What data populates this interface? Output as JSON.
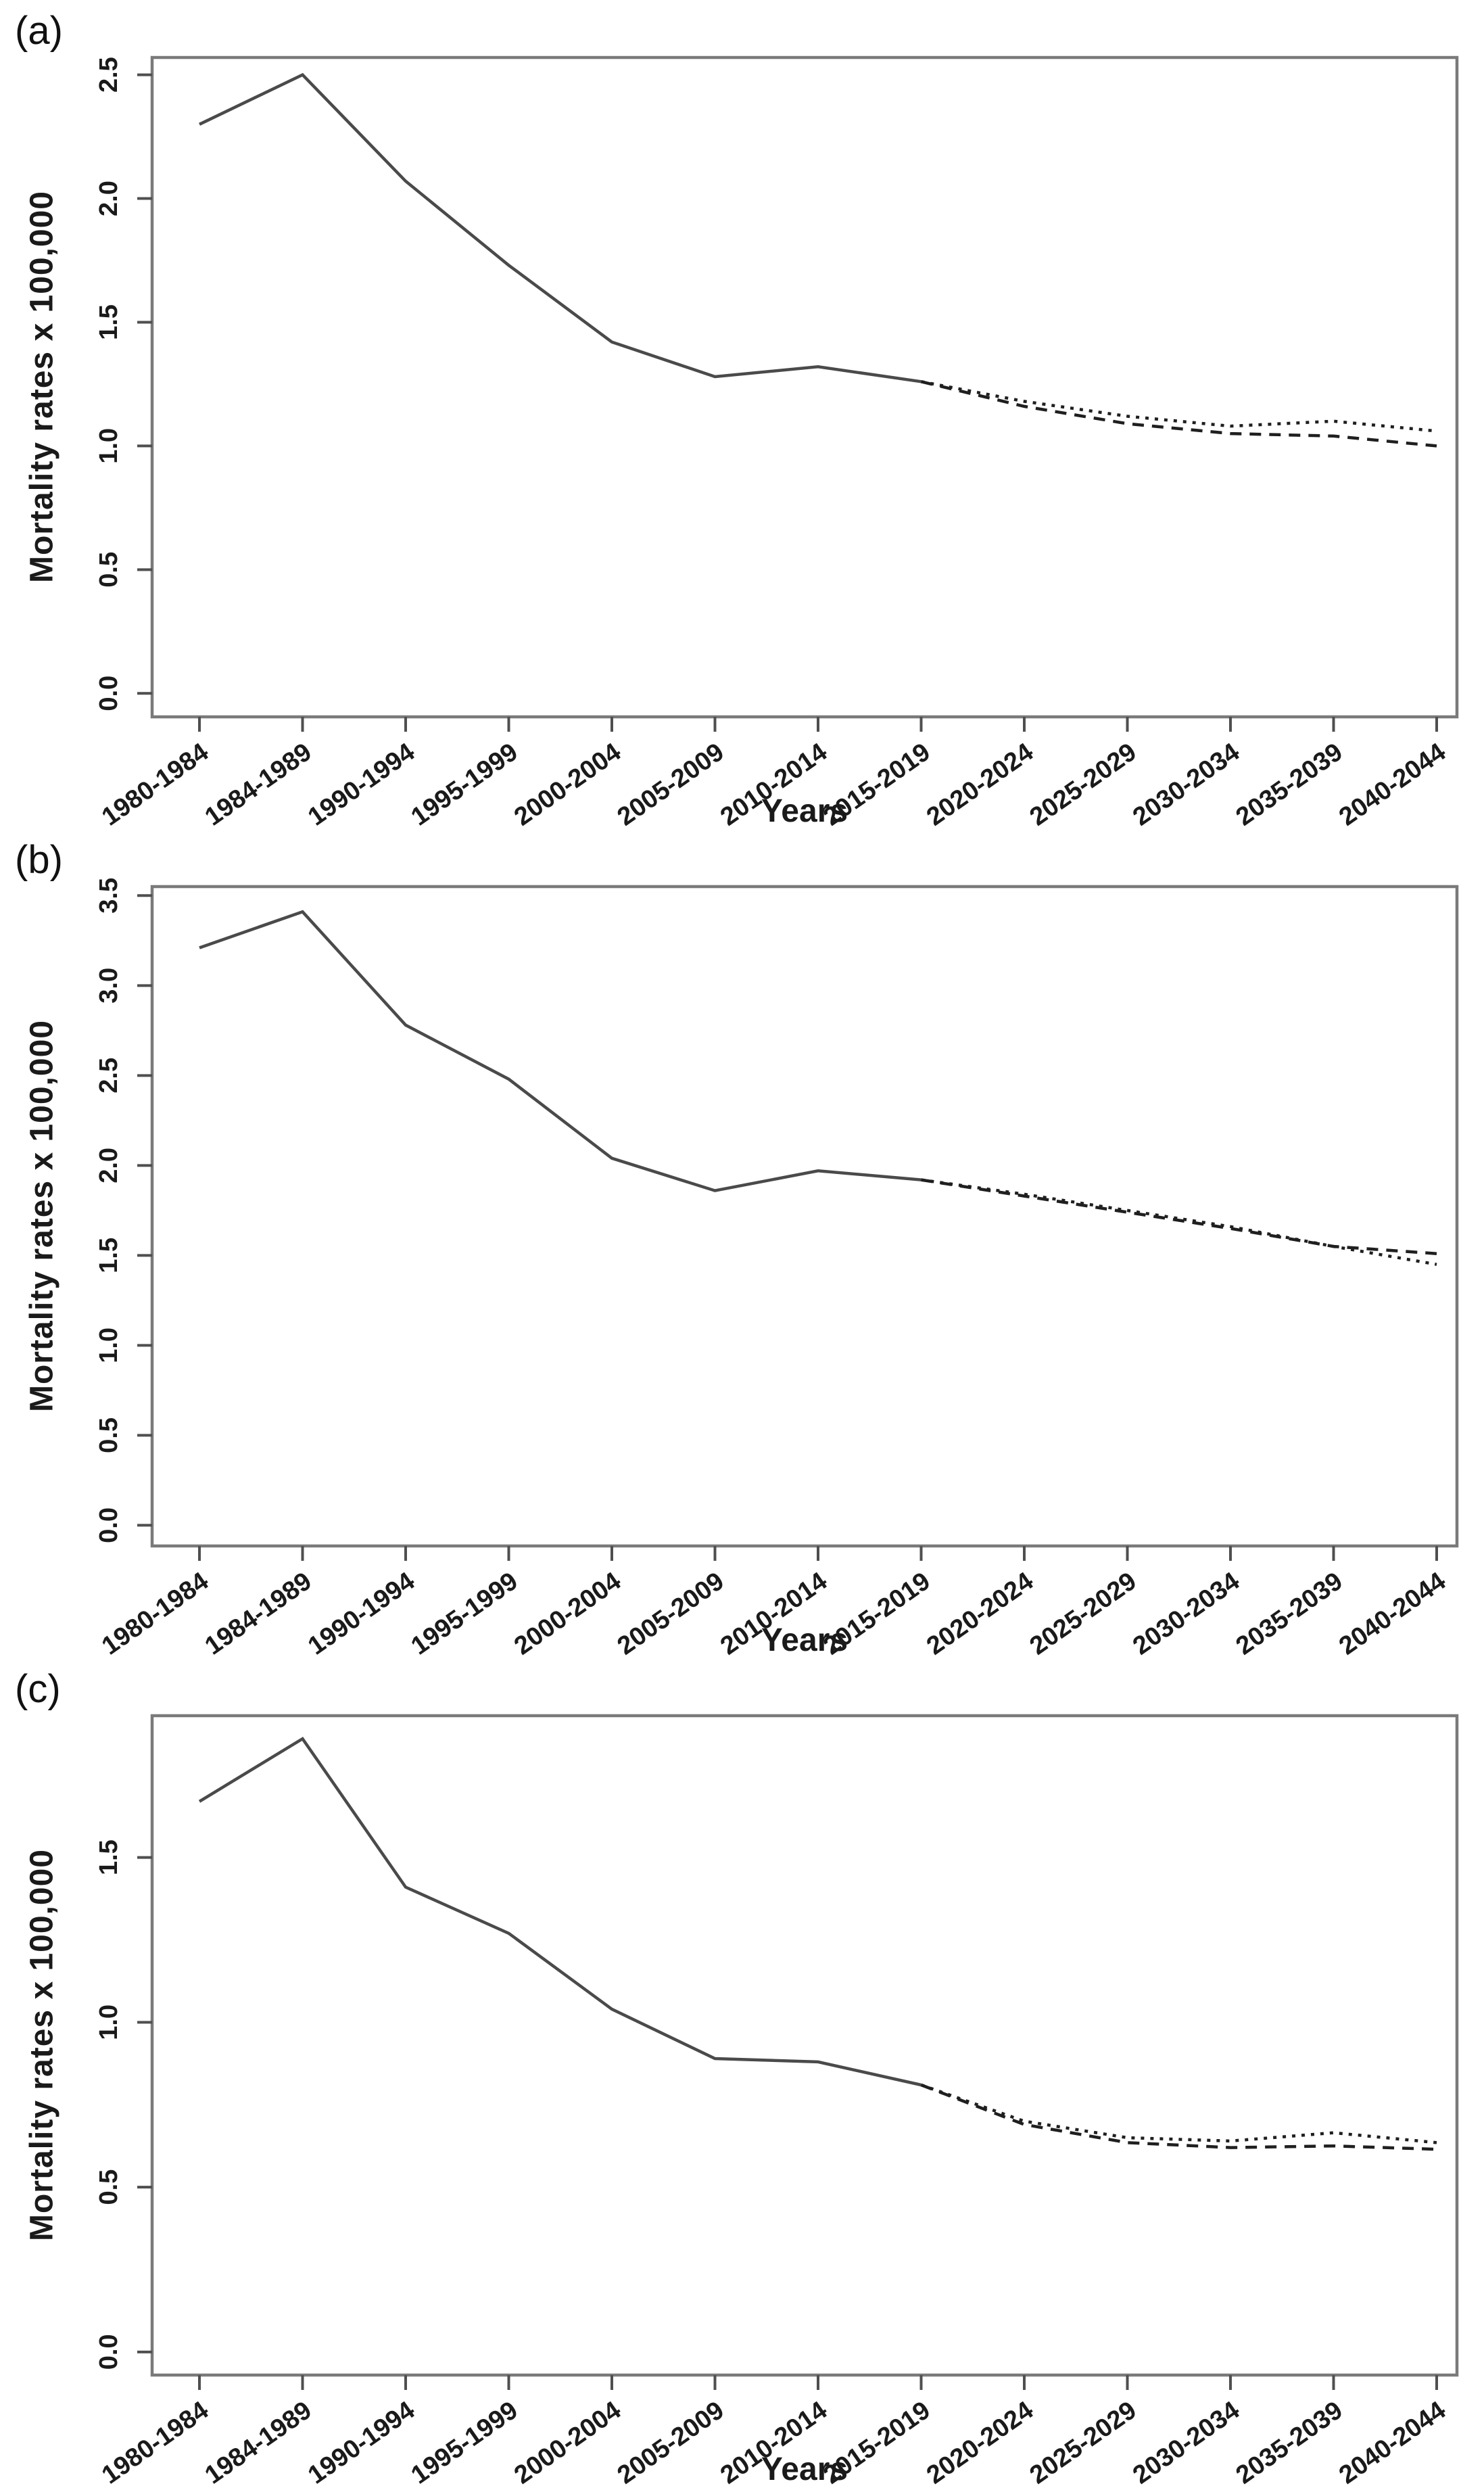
{
  "figure": {
    "background": "#ffffff",
    "text_color": "#1a1a1a",
    "axis_color": "#7a7a7a",
    "tick_color": "#4f4f4f",
    "observed_color": "#4a4a4a",
    "projection_color": "#1f1f1f"
  },
  "chart_data": [
    {
      "type": "line",
      "panel_label": "(a)",
      "xlabel": "Years",
      "ylabel": "Mortality rates x 100,000",
      "legend_position": "none",
      "grid": false,
      "categories": [
        "1980-1984",
        "1984-1989",
        "1990-1994",
        "1995-1999",
        "2000-2004",
        "2005-2009",
        "2010-2014",
        "2015-2019",
        "2020-2024",
        "2025-2029",
        "2030-2034",
        "2035-2039",
        "2040-2044"
      ],
      "ytick_labels": [
        "0.0",
        "0.5",
        "1.0",
        "1.5",
        "2.0",
        "2.5"
      ],
      "ylim": [
        -0.095,
        2.57
      ],
      "series": [
        {
          "name": "observed",
          "style": "solid",
          "start_index": 0,
          "values": [
            2.3,
            2.5,
            2.07,
            1.73,
            1.42,
            1.28,
            1.32,
            1.26
          ]
        },
        {
          "name": "projection-dotted",
          "style": "dotted",
          "start_index": 7,
          "values": [
            1.26,
            1.18,
            1.12,
            1.08,
            1.1,
            1.06
          ]
        },
        {
          "name": "projection-dashed",
          "style": "dashed",
          "start_index": 7,
          "values": [
            1.26,
            1.16,
            1.09,
            1.05,
            1.04,
            1.0
          ]
        }
      ]
    },
    {
      "type": "line",
      "panel_label": "(b)",
      "xlabel": "Years",
      "ylabel": "Mortality rates x 100,000",
      "legend_position": "none",
      "grid": false,
      "categories": [
        "1980-1984",
        "1984-1989",
        "1990-1994",
        "1995-1999",
        "2000-2004",
        "2005-2009",
        "2010-2014",
        "2015-2019",
        "2020-2024",
        "2025-2029",
        "2030-2034",
        "2035-2039",
        "2040-2044"
      ],
      "ytick_labels": [
        "0.0",
        "0.5",
        "1.0",
        "1.5",
        "2.0",
        "2.5",
        "3.0",
        "3.5"
      ],
      "ylim": [
        -0.115,
        3.55
      ],
      "series": [
        {
          "name": "observed",
          "style": "solid",
          "start_index": 0,
          "values": [
            3.21,
            3.41,
            2.78,
            2.48,
            2.04,
            1.86,
            1.97,
            1.92
          ]
        },
        {
          "name": "projection-dotted",
          "style": "dotted",
          "start_index": 7,
          "values": [
            1.92,
            1.84,
            1.75,
            1.66,
            1.55,
            1.45
          ]
        },
        {
          "name": "projection-dashed",
          "style": "dashed",
          "start_index": 7,
          "values": [
            1.92,
            1.83,
            1.74,
            1.65,
            1.55,
            1.51
          ]
        }
      ]
    },
    {
      "type": "line",
      "panel_label": "(c)",
      "xlabel": "Years",
      "ylabel": "Mortality rates x 100,000",
      "legend_position": "none",
      "grid": false,
      "categories": [
        "1980-1984",
        "1984-1989",
        "1990-1994",
        "1995-1999",
        "2000-2004",
        "2005-2009",
        "2010-2014",
        "2015-2019",
        "2020-2024",
        "2025-2029",
        "2030-2034",
        "2035-2039",
        "2040-2044"
      ],
      "ytick_labels": [
        "0.0",
        "0.5",
        "1.0",
        "1.5"
      ],
      "ylim": [
        -0.07,
        1.93
      ],
      "series": [
        {
          "name": "observed",
          "style": "solid",
          "start_index": 0,
          "values": [
            1.67,
            1.86,
            1.41,
            1.27,
            1.04,
            0.89,
            0.88,
            0.81
          ]
        },
        {
          "name": "projection-dotted",
          "style": "dotted",
          "start_index": 7,
          "values": [
            0.81,
            0.7,
            0.65,
            0.64,
            0.665,
            0.635
          ]
        },
        {
          "name": "projection-dashed",
          "style": "dashed",
          "start_index": 7,
          "values": [
            0.81,
            0.69,
            0.635,
            0.62,
            0.625,
            0.615
          ]
        }
      ]
    }
  ]
}
